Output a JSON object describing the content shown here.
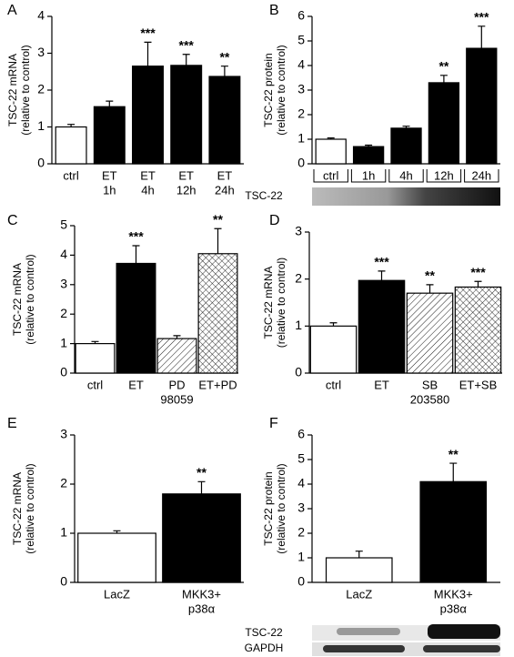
{
  "chart_data": [
    {
      "type": "bar",
      "panel_label": "A",
      "ylabel": [
        "TSC-22 mRNA",
        "(relative to control)"
      ],
      "categories": [
        [
          "ctrl"
        ],
        [
          "ET",
          "1h"
        ],
        [
          "ET",
          "4h"
        ],
        [
          "ET",
          "12h"
        ],
        [
          "ET",
          "24h"
        ]
      ],
      "values": [
        1.0,
        1.55,
        2.65,
        2.67,
        2.37
      ],
      "errors": [
        0.07,
        0.15,
        0.65,
        0.3,
        0.28
      ],
      "significance": [
        null,
        null,
        "***",
        "***",
        "**"
      ],
      "fills": [
        "white",
        "black",
        "black",
        "black",
        "black"
      ],
      "ylim": [
        0,
        4
      ],
      "yticks": [
        0,
        1,
        2,
        3,
        4
      ]
    },
    {
      "type": "bar",
      "panel_label": "B",
      "ylabel": [
        "TSC-22 protein",
        "(relative to control)"
      ],
      "categories": [
        [
          "ctrl"
        ],
        [
          "1h"
        ],
        [
          "4h"
        ],
        [
          "12h"
        ],
        [
          "24h"
        ]
      ],
      "values": [
        1.0,
        0.7,
        1.45,
        3.3,
        4.7
      ],
      "errors": [
        0.05,
        0.06,
        0.08,
        0.3,
        0.9
      ],
      "significance": [
        null,
        null,
        null,
        "**",
        "***"
      ],
      "fills": [
        "white",
        "black",
        "black",
        "black",
        "black"
      ],
      "ylim": [
        0,
        6
      ],
      "yticks": [
        0,
        1,
        2,
        3,
        4,
        5,
        6
      ],
      "blot_labels": [
        "TSC-22"
      ]
    },
    {
      "type": "bar",
      "panel_label": "C",
      "ylabel": [
        "TSC-22 mRNA",
        "(relative to control)"
      ],
      "categories": [
        [
          "ctrl"
        ],
        [
          "ET"
        ],
        [
          "PD",
          "98059"
        ],
        [
          "ET+PD"
        ]
      ],
      "values": [
        1.0,
        3.72,
        1.17,
        4.05
      ],
      "errors": [
        0.07,
        0.6,
        0.1,
        0.85
      ],
      "significance": [
        null,
        "***",
        null,
        "**"
      ],
      "fills": [
        "white",
        "black",
        "hatch",
        "crosshatch"
      ],
      "ylim": [
        0,
        5
      ],
      "yticks": [
        0,
        1,
        2,
        3,
        4,
        5
      ]
    },
    {
      "type": "bar",
      "panel_label": "D",
      "ylabel": [
        "TSC-22 mRNA",
        "(relative to control)"
      ],
      "categories": [
        [
          "ctrl"
        ],
        [
          "ET"
        ],
        [
          "SB",
          "203580"
        ],
        [
          "ET+SB"
        ]
      ],
      "values": [
        1.0,
        1.97,
        1.7,
        1.83
      ],
      "errors": [
        0.07,
        0.2,
        0.18,
        0.12
      ],
      "significance": [
        null,
        "***",
        "**",
        "***"
      ],
      "fills": [
        "white",
        "black",
        "hatch",
        "crosshatch"
      ],
      "ylim": [
        0,
        3
      ],
      "yticks": [
        0,
        1,
        2,
        3
      ]
    },
    {
      "type": "bar",
      "panel_label": "E",
      "ylabel": [
        "TSC-22 mRNA",
        "(relative to control)"
      ],
      "categories": [
        [
          "LacZ"
        ],
        [
          "MKK3+",
          "p38α"
        ]
      ],
      "values": [
        1.0,
        1.8
      ],
      "errors": [
        0.05,
        0.25
      ],
      "significance": [
        null,
        "**"
      ],
      "fills": [
        "white",
        "black"
      ],
      "ylim": [
        0,
        3
      ],
      "yticks": [
        0,
        1,
        2,
        3
      ]
    },
    {
      "type": "bar",
      "panel_label": "F",
      "ylabel": [
        "TSC-22 protein",
        "(relative to control)"
      ],
      "categories": [
        [
          "LacZ"
        ],
        [
          "MKK3+",
          "p38α"
        ]
      ],
      "values": [
        1.0,
        4.1
      ],
      "errors": [
        0.27,
        0.75
      ],
      "significance": [
        null,
        "**"
      ],
      "fills": [
        "white",
        "black"
      ],
      "ylim": [
        0,
        6
      ],
      "yticks": [
        0,
        1,
        2,
        3,
        4,
        5,
        6
      ],
      "blot_labels": [
        "TSC-22",
        "GAPDH"
      ]
    }
  ]
}
